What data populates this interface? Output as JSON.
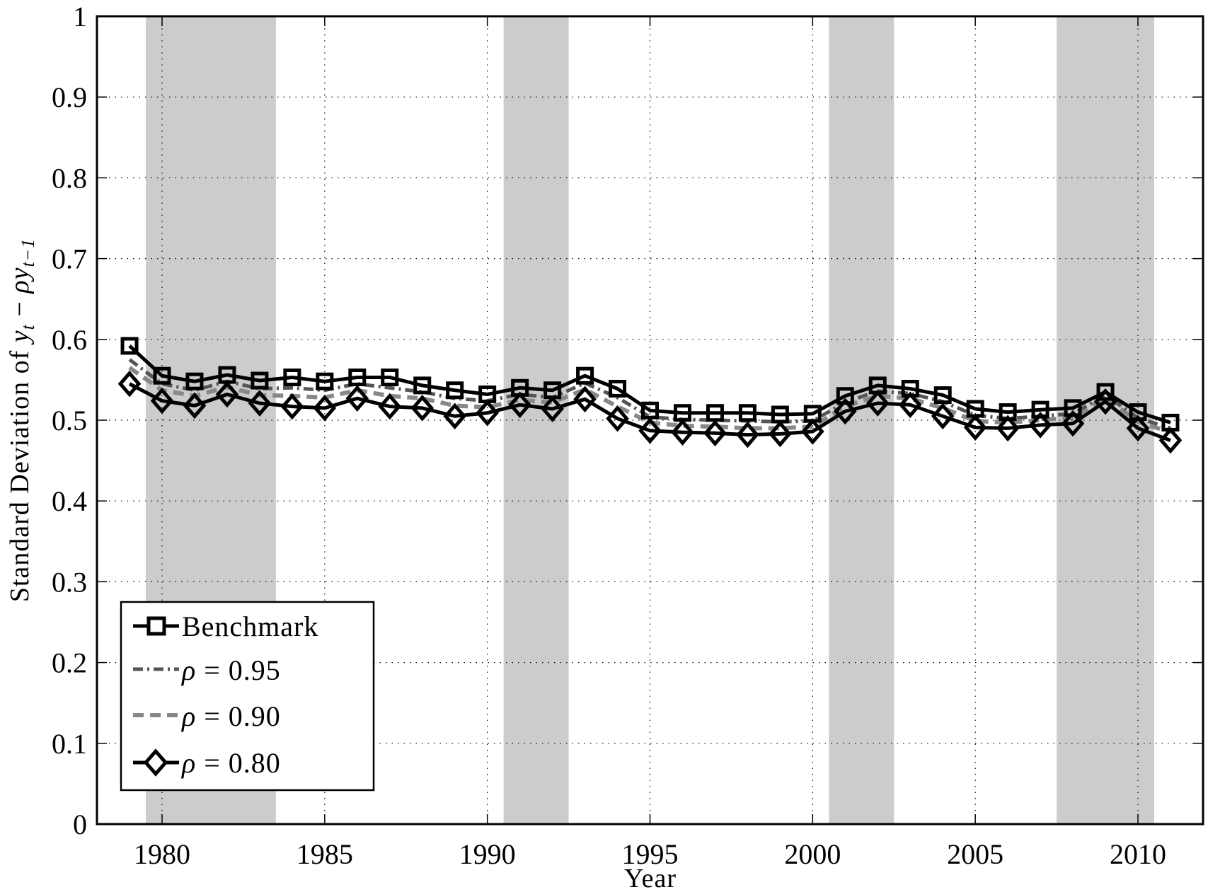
{
  "chart_data": {
    "type": "line",
    "title": "",
    "xlabel": "Year",
    "ylabel": "Standard Deviation of y_t − ρy_{t−1}",
    "ylabel_parts": {
      "prefix": "Standard Deviation of ",
      "y": "y",
      "t": "t",
      "minus": " − ",
      "rho": "ρ",
      "y2": "y",
      "t1": "t−1"
    },
    "xlim": [
      1977.25,
      2012.2
    ],
    "ylim": [
      0,
      1
    ],
    "grid": true,
    "x_ticks": [
      1980,
      1985,
      1990,
      1995,
      2000,
      2005,
      2010
    ],
    "x_tick_labels": [
      "1980",
      "1985",
      "1990",
      "1995",
      "2000",
      "2005",
      "2010"
    ],
    "y_ticks": [
      0,
      0.1,
      0.2,
      0.3,
      0.4,
      0.5,
      0.6,
      0.7,
      0.8,
      0.9,
      1
    ],
    "y_tick_labels": [
      "0",
      "0.1",
      "0.2",
      "0.3",
      "0.4",
      "0.5",
      "0.6",
      "0.7",
      "0.8",
      "0.9",
      "1"
    ],
    "shaded_periods": [
      {
        "start": 1979.5,
        "end": 1983.5
      },
      {
        "start": 1990.5,
        "end": 1992.5
      },
      {
        "start": 2000.5,
        "end": 2002.5
      },
      {
        "start": 2007.5,
        "end": 2010.5
      }
    ],
    "x": [
      1979,
      1980,
      1981,
      1982,
      1983,
      1984,
      1985,
      1986,
      1987,
      1988,
      1989,
      1990,
      1991,
      1992,
      1993,
      1994,
      1995,
      1996,
      1997,
      1998,
      1999,
      2000,
      2001,
      2002,
      2003,
      2004,
      2005,
      2006,
      2007,
      2008,
      2009,
      2010,
      2011
    ],
    "series": [
      {
        "name": "Benchmark",
        "style": "solid",
        "marker": "square",
        "color": "#000000",
        "values": [
          0.592,
          0.555,
          0.548,
          0.556,
          0.549,
          0.553,
          0.548,
          0.553,
          0.553,
          0.543,
          0.537,
          0.532,
          0.54,
          0.537,
          0.555,
          0.539,
          0.512,
          0.509,
          0.509,
          0.509,
          0.507,
          0.508,
          0.53,
          0.543,
          0.539,
          0.531,
          0.514,
          0.51,
          0.513,
          0.515,
          0.535,
          0.51,
          0.497
        ]
      },
      {
        "name": "ρ = 0.95",
        "style": "dashdot",
        "marker": "none",
        "color": "#555555",
        "values": [
          0.575,
          0.545,
          0.537,
          0.548,
          0.539,
          0.54,
          0.537,
          0.545,
          0.54,
          0.535,
          0.527,
          0.524,
          0.532,
          0.528,
          0.546,
          0.528,
          0.504,
          0.501,
          0.5,
          0.499,
          0.498,
          0.499,
          0.522,
          0.536,
          0.533,
          0.523,
          0.506,
          0.502,
          0.505,
          0.508,
          0.531,
          0.503,
          0.49
        ]
      },
      {
        "name": "ρ = 0.90",
        "style": "dashed",
        "marker": "none",
        "color": "#888888",
        "values": [
          0.565,
          0.537,
          0.53,
          0.541,
          0.531,
          0.53,
          0.528,
          0.537,
          0.53,
          0.527,
          0.518,
          0.516,
          0.525,
          0.522,
          0.538,
          0.517,
          0.497,
          0.493,
          0.492,
          0.49,
          0.49,
          0.492,
          0.517,
          0.53,
          0.527,
          0.515,
          0.499,
          0.497,
          0.5,
          0.503,
          0.528,
          0.498,
          0.485
        ]
      },
      {
        "name": "ρ = 0.80",
        "style": "solid",
        "marker": "diamond",
        "color": "#000000",
        "values": [
          0.545,
          0.524,
          0.518,
          0.532,
          0.521,
          0.517,
          0.515,
          0.527,
          0.517,
          0.515,
          0.505,
          0.509,
          0.519,
          0.514,
          0.526,
          0.502,
          0.487,
          0.485,
          0.484,
          0.482,
          0.483,
          0.486,
          0.511,
          0.521,
          0.519,
          0.505,
          0.491,
          0.49,
          0.494,
          0.496,
          0.523,
          0.49,
          0.475
        ]
      }
    ],
    "legend": {
      "position": "lower-left",
      "entries": [
        {
          "label": "Benchmark",
          "rho": "",
          "value": ""
        },
        {
          "label": "",
          "rho": "ρ",
          "value": " = 0.95"
        },
        {
          "label": "",
          "rho": "ρ",
          "value": " = 0.90"
        },
        {
          "label": "",
          "rho": "ρ",
          "value": " = 0.80"
        }
      ]
    },
    "colors": {
      "shade": "#cccccc",
      "grid": "#000000",
      "axis": "#000000",
      "background": "#ffffff"
    }
  }
}
